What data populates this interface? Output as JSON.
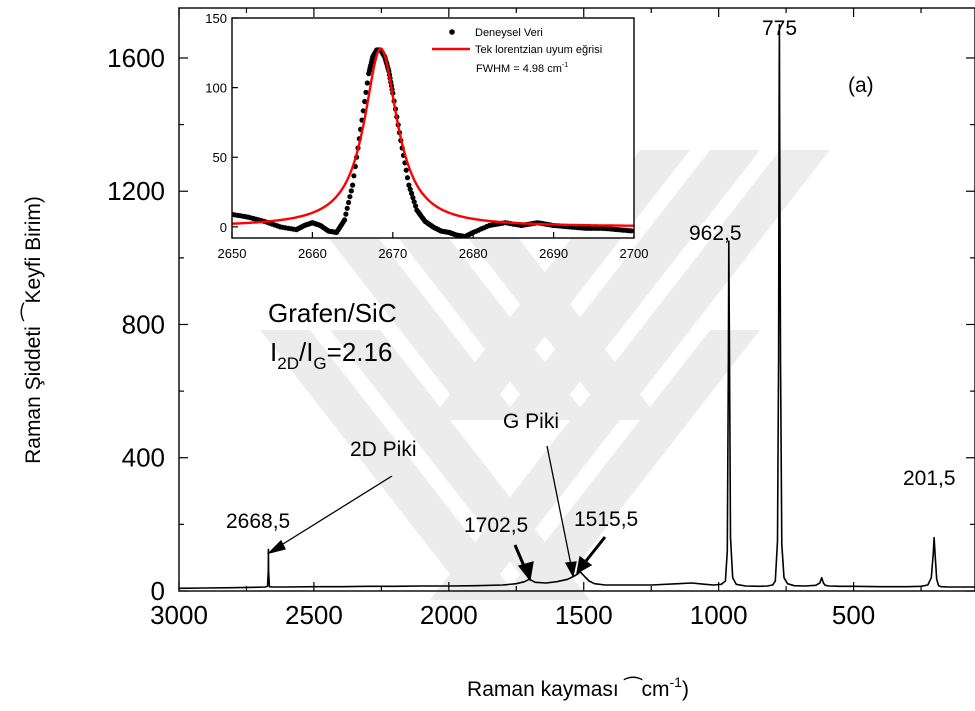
{
  "chart_data": [
    {
      "type": "line",
      "xlabel": "Raman kayması ⁀cm",
      "xlabel_sup": "-1",
      "xlabel_close": ")",
      "ylabel": "Raman Şiddeti ⁀Keyfi Birim",
      "ylabel_close": ")",
      "xlim": [
        3000,
        50
      ],
      "ylim": [
        0,
        1750
      ],
      "x_ticks": [
        3000,
        2500,
        2000,
        1500,
        1000,
        500
      ],
      "x_tick_labels": [
        "3000",
        "2500",
        "2000",
        "1500",
        "1000",
        "500"
      ],
      "y_ticks": [
        0,
        400,
        800,
        1200,
        1600
      ],
      "y_tick_labels": [
        "0",
        "400",
        "800",
        "1200",
        "1600"
      ],
      "panel_label": "(a)",
      "sample_label": "Grafen/SiC",
      "ratio_label": {
        "i": "I",
        "sub1": "2D",
        "slash": "/I",
        "sub2": "G",
        "value": "=2.16"
      },
      "peaks": [
        {
          "label": "2668,5",
          "x": 2668.5,
          "y": 125
        },
        {
          "label": "1702,5",
          "x": 1702.5,
          "y": 38
        },
        {
          "label": "1515,5",
          "x": 1515.5,
          "y": 58
        },
        {
          "label": "962,5",
          "x": 962.5,
          "y": 1050
        },
        {
          "label": "775",
          "x": 775,
          "y": 1700
        },
        {
          "label": "201,5",
          "x": 201.5,
          "y": 160
        }
      ],
      "annotations": {
        "d2_peak": "2D Piki",
        "g_peak": "G Piki"
      },
      "series": [
        {
          "x": [
            3000,
            2900,
            2800,
            2720,
            2680,
            2672,
            2669,
            2668.5,
            2668,
            2665,
            2655,
            2600,
            2500,
            2400,
            2300,
            2200,
            2100,
            2000,
            1900,
            1800,
            1750,
            1720,
            1705,
            1702.5,
            1698,
            1680,
            1640,
            1600,
            1560,
            1535,
            1520,
            1515.5,
            1510,
            1495,
            1480,
            1460,
            1420,
            1350,
            1250,
            1150,
            1100,
            1050,
            1020,
            990,
            975,
            968,
            964,
            962.5,
            960,
            956,
            948,
            935,
            900,
            850,
            820,
            800,
            790,
            782,
            778,
            776,
            775,
            774,
            771,
            766,
            758,
            745,
            720,
            680,
            640,
            625,
            618,
            612,
            605,
            590,
            550,
            500,
            400,
            300,
            250,
            225,
            212,
            205,
            201.5,
            198,
            192,
            185,
            175,
            150,
            120,
            80,
            50
          ],
          "y": [
            8,
            9,
            10,
            11,
            12,
            14,
            60,
            125,
            60,
            13,
            12,
            12,
            13,
            13,
            14,
            14,
            15,
            15,
            16,
            18,
            22,
            28,
            34,
            38,
            34,
            26,
            24,
            28,
            35,
            45,
            52,
            58,
            55,
            42,
            30,
            22,
            18,
            18,
            18,
            22,
            24,
            20,
            18,
            20,
            30,
            120,
            700,
            1050,
            700,
            160,
            40,
            20,
            15,
            14,
            15,
            18,
            30,
            150,
            700,
            1450,
            1700,
            1450,
            700,
            140,
            40,
            22,
            16,
            15,
            17,
            24,
            40,
            24,
            17,
            15,
            14,
            14,
            13,
            13,
            14,
            18,
            40,
            110,
            160,
            110,
            35,
            16,
            13,
            12,
            12,
            12,
            12
          ]
        }
      ]
    },
    {
      "type": "scatter",
      "xlim": [
        2650,
        2700
      ],
      "ylim": [
        -8,
        150
      ],
      "x_ticks": [
        2650,
        2660,
        2670,
        2680,
        2690,
        2700
      ],
      "x_tick_labels": [
        "2650",
        "2660",
        "2670",
        "2680",
        "2690",
        "2700"
      ],
      "y_ticks": [
        0,
        50,
        100,
        150
      ],
      "y_tick_labels": [
        "0",
        "50",
        "100",
        "150"
      ],
      "legend_placement": "top-right",
      "fwhm_label": "FWHM = 4.98 cm",
      "fwhm_sup": "-1",
      "series": [
        {
          "name": "Deneysel Veri",
          "color": "#000000",
          "x": [
            2650,
            2652,
            2654,
            2656,
            2658,
            2659,
            2660,
            2661,
            2662,
            2663,
            2664,
            2665,
            2666,
            2667,
            2667.5,
            2668,
            2668.5,
            2669,
            2669.5,
            2670,
            2671,
            2672,
            2673,
            2674,
            2675,
            2676,
            2677,
            2678,
            2679,
            2680,
            2682,
            2684,
            2686,
            2688,
            2690,
            2692,
            2694,
            2696,
            2698,
            2700
          ],
          "y": [
            9,
            7,
            4,
            0,
            -2,
            1,
            3,
            1,
            -3,
            -4,
            5,
            30,
            70,
            110,
            122,
            127,
            127,
            122,
            112,
            96,
            62,
            30,
            12,
            4,
            0,
            -3,
            -4,
            -6,
            -7,
            -4,
            1,
            3,
            1,
            3,
            1,
            0,
            -1,
            -1,
            -2,
            -3
          ]
        },
        {
          "name": "Tek  lorentzian uyum eğrisi",
          "color": "#ff0000",
          "center": 2668.5,
          "fwhm": 4.98,
          "amplitude": 128
        }
      ]
    }
  ]
}
